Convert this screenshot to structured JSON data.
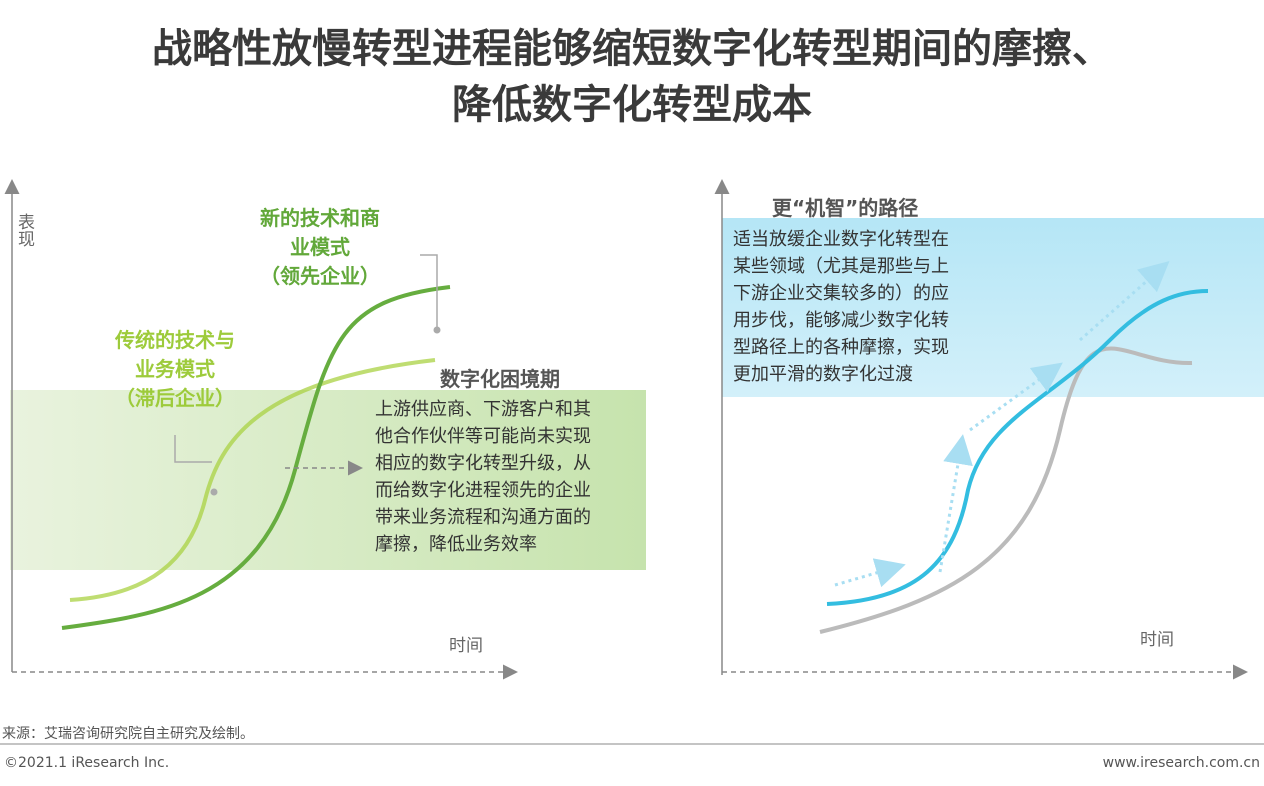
{
  "title": {
    "lines": [
      "战略性放慢转型进程能够缩短数字化转型期间的摩擦、",
      "降低数字化转型成本"
    ]
  },
  "left_panel": {
    "y_axis_label": "表现",
    "x_axis_label": "时间",
    "leader_label": {
      "lines": [
        "新的技术和商",
        "业模式",
        "（领先企业）"
      ]
    },
    "laggard_label": {
      "lines": [
        "传统的技术与",
        "业务模式",
        "（滞后企业）"
      ]
    },
    "callout": {
      "title": "数字化困境期",
      "lines": [
        "上游供应商、下游客户和其",
        "他合作伙伴等可能尚未实现",
        "相应的数字化转型升级，从",
        "而给数字化进程领先的企业",
        "带来业务流程和沟通方面的",
        "摩擦，降低业务效率"
      ]
    }
  },
  "right_panel": {
    "x_axis_label": "时间",
    "callout": {
      "title": "更“机智”的路径",
      "lines": [
        "适当放缓企业数字化转型在",
        "某些领域（尤其是那些与上",
        "下游企业交集较多的）的应",
        "用步伐，能够减少数字化转",
        "型路径上的各种摩擦，实现",
        "更加平滑的数字化过渡"
      ]
    }
  },
  "footer": {
    "source": "来源：艾瑞咨询研究院自主研究及绘制。",
    "copyright": "©2021.1 iResearch Inc.",
    "website": "www.iresearch.com.cn"
  }
}
